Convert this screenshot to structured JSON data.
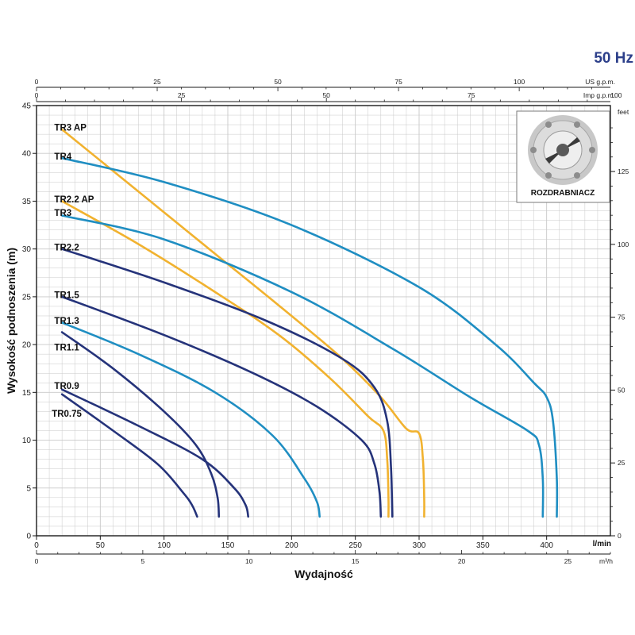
{
  "header": {
    "frequency": "50 Hz"
  },
  "axes": {
    "x_title": "Wydajność",
    "y_title": "Wysokość podnoszenia (m)",
    "x_unit_lmin": "l/min",
    "x_unit_m3h": "m³/h",
    "top_unit_us": "US g.p.m.",
    "top_unit_imp": "Imp g.p.m.",
    "right_unit": "feet",
    "x_ticks_lmin": [
      0,
      50,
      100,
      150,
      200,
      250,
      300,
      350,
      400
    ],
    "x_ticks_m3h": [
      0,
      5,
      10,
      15,
      20,
      25
    ],
    "x_ticks_us": [
      0,
      25,
      50,
      75,
      100
    ],
    "x_ticks_imp": [
      0,
      25,
      50,
      75,
      100
    ],
    "y_ticks_m": [
      0,
      5,
      10,
      15,
      20,
      25,
      30,
      35,
      40,
      45
    ],
    "y_ticks_feet": [
      0,
      25,
      50,
      75,
      100,
      125
    ]
  },
  "inset": {
    "label": "ROZDRABNIACZ"
  },
  "colors": {
    "navy": "#25337a",
    "blue": "#1f8ec2",
    "orange": "#f1b22f",
    "grid": "#c9c9c9"
  },
  "chart_data": {
    "type": "line",
    "xlabel": "Wydajność",
    "ylabel": "Wysokość podnoszenia (m)",
    "xlim": [
      0,
      450
    ],
    "ylim": [
      0,
      45
    ],
    "grid": true,
    "series": [
      {
        "name": "TR3 AP",
        "color": "orange",
        "label_pos": [
          4,
          42.7
        ],
        "points": [
          [
            20,
            42.5
          ],
          [
            80,
            36
          ],
          [
            140,
            29.5
          ],
          [
            200,
            23
          ],
          [
            240,
            18.5
          ],
          [
            270,
            14.5
          ],
          [
            290,
            11.2
          ],
          [
            300,
            10.7
          ],
          [
            303,
            8
          ],
          [
            304,
            4
          ],
          [
            304,
            2
          ]
        ]
      },
      {
        "name": "TR4",
        "color": "blue",
        "label_pos": [
          4,
          39.7
        ],
        "points": [
          [
            20,
            39.5
          ],
          [
            100,
            37
          ],
          [
            200,
            32.5
          ],
          [
            300,
            26
          ],
          [
            360,
            20
          ],
          [
            390,
            16
          ],
          [
            400,
            14.5
          ],
          [
            405,
            12
          ],
          [
            408,
            6
          ],
          [
            408,
            2
          ]
        ]
      },
      {
        "name": "TR2.2 AP",
        "color": "orange",
        "label_pos": [
          4,
          35.2
        ],
        "points": [
          [
            20,
            35
          ],
          [
            80,
            30.5
          ],
          [
            140,
            25.5
          ],
          [
            190,
            21
          ],
          [
            230,
            16.5
          ],
          [
            260,
            12.5
          ],
          [
            272,
            11
          ],
          [
            275,
            8
          ],
          [
            276,
            4
          ],
          [
            276,
            2
          ]
        ]
      },
      {
        "name": "TR3",
        "color": "blue",
        "label_pos": [
          4,
          33.8
        ],
        "points": [
          [
            20,
            33.5
          ],
          [
            100,
            31
          ],
          [
            200,
            25.5
          ],
          [
            280,
            19.5
          ],
          [
            340,
            14.5
          ],
          [
            385,
            11
          ],
          [
            394,
            9.5
          ],
          [
            397,
            6
          ],
          [
            397,
            2
          ]
        ]
      },
      {
        "name": "TR2.2",
        "color": "navy",
        "label_pos": [
          4,
          30.2
        ],
        "points": [
          [
            20,
            30
          ],
          [
            100,
            26.5
          ],
          [
            180,
            22.5
          ],
          [
            240,
            18.5
          ],
          [
            265,
            15.5
          ],
          [
            275,
            12
          ],
          [
            278,
            7
          ],
          [
            279,
            2
          ]
        ]
      },
      {
        "name": "TR1.5",
        "color": "navy",
        "label_pos": [
          4,
          25.2
        ],
        "points": [
          [
            20,
            25
          ],
          [
            100,
            21
          ],
          [
            170,
            17
          ],
          [
            220,
            13.5
          ],
          [
            255,
            10
          ],
          [
            265,
            7.5
          ],
          [
            269,
            4.5
          ],
          [
            270,
            2
          ]
        ]
      },
      {
        "name": "TR1.3",
        "color": "blue",
        "label_pos": [
          4,
          22.5
        ],
        "points": [
          [
            20,
            22.3
          ],
          [
            80,
            19
          ],
          [
            140,
            15
          ],
          [
            185,
            10.5
          ],
          [
            210,
            6
          ],
          [
            220,
            3.5
          ],
          [
            222,
            2
          ]
        ]
      },
      {
        "name": "TR1.1",
        "color": "navy",
        "label_pos": [
          4,
          19.7
        ],
        "points": [
          [
            20,
            21.3
          ],
          [
            60,
            17.5
          ],
          [
            100,
            13
          ],
          [
            125,
            9.5
          ],
          [
            137,
            6.5
          ],
          [
            142,
            4
          ],
          [
            143,
            2
          ]
        ]
      },
      {
        "name": "TR0.9",
        "color": "navy",
        "label_pos": [
          4,
          15.7
        ],
        "points": [
          [
            20,
            15.3
          ],
          [
            80,
            11.5
          ],
          [
            130,
            8
          ],
          [
            155,
            5
          ],
          [
            164,
            3.2
          ],
          [
            166,
            2
          ]
        ]
      },
      {
        "name": "TR0.75",
        "color": "navy",
        "label_pos": [
          2,
          12.8
        ],
        "points": [
          [
            20,
            14.8
          ],
          [
            60,
            11
          ],
          [
            95,
            7.5
          ],
          [
            115,
            4.5
          ],
          [
            122,
            3.2
          ],
          [
            126,
            2
          ]
        ]
      }
    ]
  }
}
